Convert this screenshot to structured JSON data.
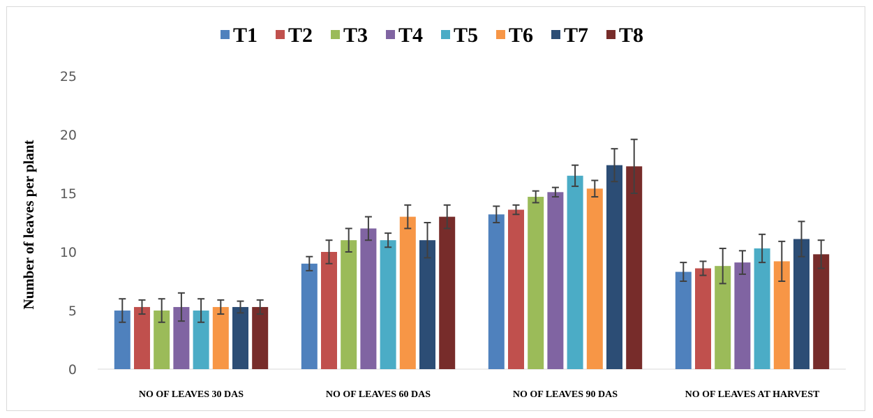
{
  "chart_data": {
    "type": "bar",
    "title": "",
    "xlabel": "",
    "ylabel": "Number of leaves per plant",
    "ylim": [
      0,
      25
    ],
    "yticks": [
      0,
      5,
      10,
      15,
      20,
      25
    ],
    "grid": false,
    "legend_position": "top",
    "categories": [
      "NO OF LEAVES 30 DAS",
      "NO OF LEAVES 60 DAS",
      "NO OF LEAVES 90 DAS",
      "NO OF LEAVES AT HARVEST"
    ],
    "series": [
      {
        "name": "T1",
        "color": "#4f81bd",
        "values": [
          5.0,
          9.0,
          13.2,
          8.3
        ],
        "errors": [
          1.0,
          0.6,
          0.7,
          0.8
        ]
      },
      {
        "name": "T2",
        "color": "#c0504d",
        "values": [
          5.3,
          10.0,
          13.6,
          8.6
        ],
        "errors": [
          0.6,
          1.0,
          0.4,
          0.6
        ]
      },
      {
        "name": "T3",
        "color": "#9bbb59",
        "values": [
          5.0,
          11.0,
          14.7,
          8.8
        ],
        "errors": [
          1.0,
          1.0,
          0.5,
          1.5
        ]
      },
      {
        "name": "T4",
        "color": "#8064a2",
        "values": [
          5.3,
          12.0,
          15.1,
          9.1
        ],
        "errors": [
          1.2,
          1.0,
          0.4,
          1.0
        ]
      },
      {
        "name": "T5",
        "color": "#4bacc6",
        "values": [
          5.0,
          11.0,
          16.5,
          10.3
        ],
        "errors": [
          1.0,
          0.6,
          0.9,
          1.2
        ]
      },
      {
        "name": "T6",
        "color": "#f79646",
        "values": [
          5.3,
          13.0,
          15.4,
          9.2
        ],
        "errors": [
          0.6,
          1.0,
          0.7,
          1.7
        ]
      },
      {
        "name": "T7",
        "color": "#2c4d75",
        "values": [
          5.3,
          11.0,
          17.4,
          11.1
        ],
        "errors": [
          0.5,
          1.5,
          1.4,
          1.5
        ]
      },
      {
        "name": "T8",
        "color": "#772c2a",
        "values": [
          5.3,
          13.0,
          17.3,
          9.8
        ],
        "errors": [
          0.6,
          1.0,
          2.3,
          1.2
        ]
      }
    ]
  }
}
